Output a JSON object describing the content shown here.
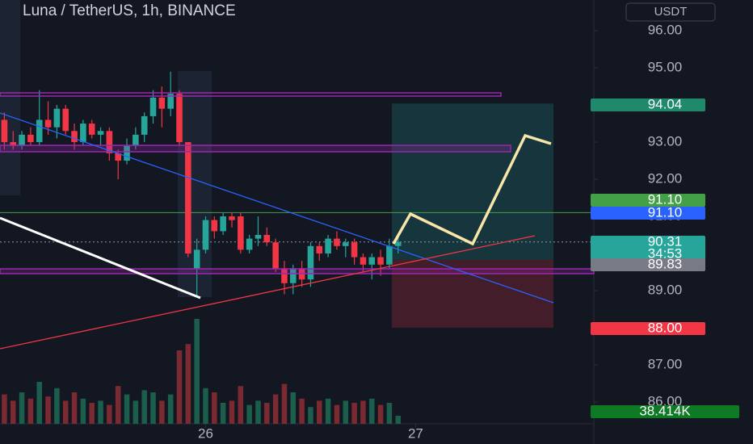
{
  "chart_data": {
    "type": "candlestick",
    "title": "Luna / TetherUS, 1h, BINANCE",
    "currency_button": "USDT",
    "up_color": "#26a69a",
    "down_color": "#f23645",
    "volume_up_color": "#1b5e4c",
    "volume_down_color": "#7a2a30",
    "ylim": [
      85.41,
      96.83
    ],
    "yticks": [
      {
        "value": 86,
        "label": "86.00"
      },
      {
        "value": 87,
        "label": "87.00"
      },
      {
        "value": 88,
        "label": "88.00"
      },
      {
        "value": 89,
        "label": "89.00"
      },
      {
        "value": 90,
        "label": "90.00"
      },
      {
        "value": 91,
        "label": "91.00"
      },
      {
        "value": 92,
        "label": "92.00"
      },
      {
        "value": 93,
        "label": "93.00"
      },
      {
        "value": 94,
        "label": "94.00"
      },
      {
        "value": 95,
        "label": "95.00"
      },
      {
        "value": 96,
        "label": "96.00"
      }
    ],
    "xlim": [
      -0.5,
      67.37
    ],
    "xticks": [
      {
        "value": 23,
        "label": "26"
      },
      {
        "value": 47,
        "label": "27"
      }
    ],
    "open": [
      93.6,
      93.0,
      92.9,
      93.2,
      93.0,
      93.6,
      93.4,
      93.9,
      93.3,
      93.0,
      93.5,
      93.2,
      93.3,
      92.7,
      92.5,
      92.9,
      93.2,
      93.7,
      94.2,
      93.9,
      94.3,
      93.0,
      89.6,
      90.1,
      90.9,
      90.6,
      91.0,
      91.0,
      90.1,
      90.4,
      90.5,
      90.3,
      89.6,
      89.2,
      89.6,
      89.3,
      90.2,
      90.0,
      90.4,
      90.2,
      90.3,
      89.9,
      89.7,
      89.9,
      89.7,
      90.2
    ],
    "high": [
      93.8,
      93.3,
      93.3,
      93.4,
      94.4,
      94.1,
      94.0,
      94.0,
      93.5,
      93.6,
      93.6,
      93.4,
      93.4,
      92.8,
      93.1,
      93.4,
      93.8,
      94.4,
      94.5,
      94.9,
      94.4,
      93.0,
      90.4,
      91.0,
      91.0,
      91.1,
      91.1,
      91.1,
      90.5,
      91.0,
      90.7,
      90.4,
      89.8,
      89.7,
      89.8,
      90.3,
      90.3,
      90.5,
      90.6,
      90.4,
      90.4,
      90.0,
      90.0,
      90.1,
      90.4,
      90.5
    ],
    "low": [
      92.8,
      92.8,
      92.8,
      92.9,
      92.9,
      93.2,
      93.1,
      93.2,
      92.8,
      92.9,
      93.1,
      92.9,
      92.5,
      92.0,
      92.4,
      92.8,
      93.0,
      93.5,
      93.4,
      93.7,
      92.9,
      89.9,
      88.85,
      90.0,
      90.4,
      90.5,
      90.7,
      90.0,
      90.0,
      90.2,
      90.2,
      89.5,
      88.9,
      88.9,
      89.1,
      89.1,
      89.8,
      89.9,
      90.1,
      89.9,
      89.7,
      89.5,
      89.3,
      89.4,
      89.6,
      90.0
    ],
    "close": [
      93.0,
      92.9,
      93.2,
      93.0,
      93.6,
      93.4,
      93.9,
      93.3,
      93.0,
      93.5,
      93.2,
      93.3,
      92.7,
      92.5,
      92.9,
      93.2,
      93.7,
      94.2,
      93.9,
      94.3,
      93.0,
      90.0,
      90.1,
      90.9,
      90.6,
      91.0,
      90.9,
      90.1,
      90.4,
      90.5,
      90.3,
      89.6,
      89.2,
      89.6,
      89.3,
      90.2,
      90.0,
      90.4,
      90.2,
      90.3,
      89.9,
      89.7,
      89.9,
      89.7,
      90.2,
      90.31
    ],
    "volume": [
      140,
      110,
      150,
      120,
      200,
      130,
      170,
      110,
      150,
      120,
      100,
      110,
      90,
      180,
      140,
      110,
      160,
      150,
      110,
      140,
      350,
      380,
      500,
      170,
      150,
      100,
      110,
      180,
      90,
      110,
      100,
      140,
      190,
      150,
      120,
      80,
      110,
      120,
      90,
      110,
      100,
      110,
      120,
      90,
      100,
      38.414
    ],
    "volume_label": "38.414K",
    "price_tags": [
      {
        "value": 94.04,
        "label": "94.04",
        "color": "#1e8a6b"
      },
      {
        "value": 91.1,
        "label": "91.10",
        "color": "#43a047"
      },
      {
        "value": 91.1,
        "label": "91.10",
        "color": "#2962ff"
      },
      {
        "value": 90.31,
        "label": "90.31",
        "color": "#26a69a"
      },
      {
        "value": 89.83,
        "label": "89.83",
        "color": "#787b86"
      },
      {
        "value": 88.0,
        "label": "88.00",
        "color": "#f23645"
      }
    ],
    "countdown": "34:53"
  }
}
